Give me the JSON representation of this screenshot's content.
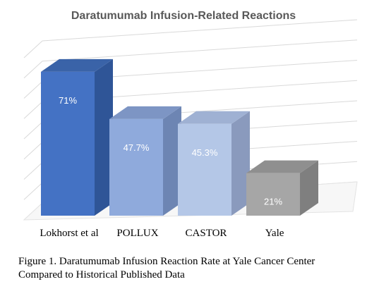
{
  "chart_data": {
    "type": "bar",
    "title": "Daratumumab Infusion-Related Reactions",
    "categories": [
      "Lokhorst et al",
      "POLLUX",
      "CASTOR",
      "Yale"
    ],
    "values": [
      71,
      47.7,
      45.3,
      21
    ],
    "value_labels": [
      "71%",
      "47.7%",
      "45.3%",
      "21%"
    ],
    "ylim": [
      0,
      80
    ],
    "grid": true,
    "style": "3d-column",
    "colors": {
      "front": [
        "#4472c4",
        "#8faadc",
        "#b4c7e7",
        "#a6a6a6"
      ],
      "side": [
        "#2f5597",
        "#6d85b3",
        "#8a9abd",
        "#7f7f7f"
      ],
      "top": [
        "#3a63a8",
        "#7d95c4",
        "#9fb1d3",
        "#8f8f8f"
      ]
    }
  },
  "caption": {
    "line1": "Figure 1. Daratumumab Infusion Reaction Rate at Yale Cancer Center",
    "line2": "Compared to Historical Published Data"
  }
}
